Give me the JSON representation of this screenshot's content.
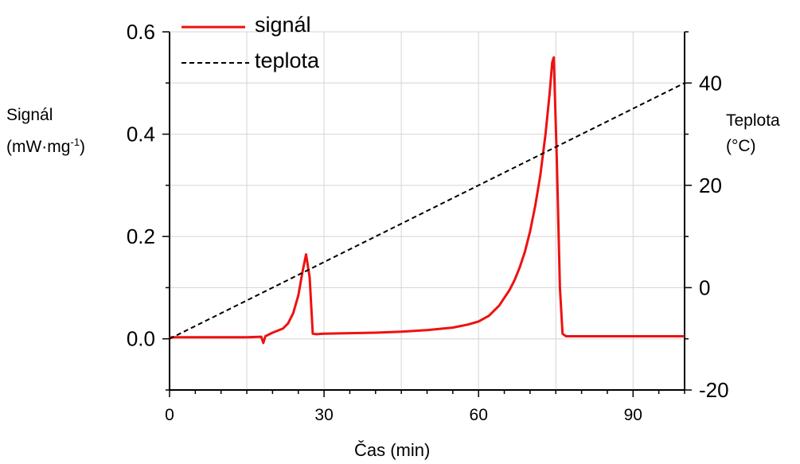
{
  "chart_data": {
    "type": "line",
    "x_axis": {
      "label": "Čas (min)",
      "range": [
        0,
        100
      ],
      "ticks": [
        0,
        30,
        60,
        90
      ],
      "tick_labels": [
        "0",
        "30",
        "60",
        "90"
      ]
    },
    "y_axis_left": {
      "label_line1": "Signál",
      "label_line2_pre": "(mW·mg",
      "label_line2_sup": "-1",
      "label_line2_post": ")",
      "range": [
        -0.1,
        0.6
      ],
      "ticks": [
        0.0,
        0.2,
        0.4,
        0.6
      ],
      "tick_labels": [
        "0.0",
        "0.2",
        "0.4",
        "0.6"
      ]
    },
    "y_axis_right": {
      "label_line1": "Teplota",
      "label_line2": "(°C)",
      "range": [
        -20,
        50
      ],
      "ticks": [
        -20,
        0,
        20,
        40
      ],
      "tick_labels": [
        "-20",
        "0",
        "20",
        "40"
      ]
    },
    "grid": true,
    "legend": {
      "placement": "top-left"
    },
    "series": [
      {
        "name": "signál",
        "axis": "left",
        "color": "#ee1111",
        "style": "solid",
        "x": [
          0,
          5,
          10,
          15,
          17.8,
          18.2,
          18.6,
          20,
          22,
          23,
          24,
          25,
          25.8,
          26.5,
          27.2,
          27.8,
          28.5,
          30,
          35,
          40,
          45,
          50,
          55,
          58,
          60,
          62,
          64,
          66,
          67,
          68,
          69,
          70,
          71,
          72,
          73,
          73.8,
          74.3,
          74.6,
          75.2,
          75.8,
          76.3,
          77,
          80,
          85,
          90,
          95,
          100
        ],
        "y": [
          0.003,
          0.003,
          0.003,
          0.003,
          0.004,
          -0.008,
          0.005,
          0.012,
          0.02,
          0.03,
          0.05,
          0.085,
          0.13,
          0.165,
          0.12,
          0.01,
          0.009,
          0.01,
          0.011,
          0.012,
          0.014,
          0.017,
          0.022,
          0.028,
          0.034,
          0.045,
          0.065,
          0.095,
          0.115,
          0.14,
          0.17,
          0.21,
          0.26,
          0.32,
          0.4,
          0.48,
          0.54,
          0.55,
          0.35,
          0.1,
          0.01,
          0.005,
          0.005,
          0.005,
          0.005,
          0.005,
          0.005
        ]
      },
      {
        "name": "teplota",
        "axis": "right",
        "color": "#000000",
        "style": "dashed",
        "x": [
          0,
          100
        ],
        "y": [
          -10,
          40
        ]
      }
    ]
  }
}
